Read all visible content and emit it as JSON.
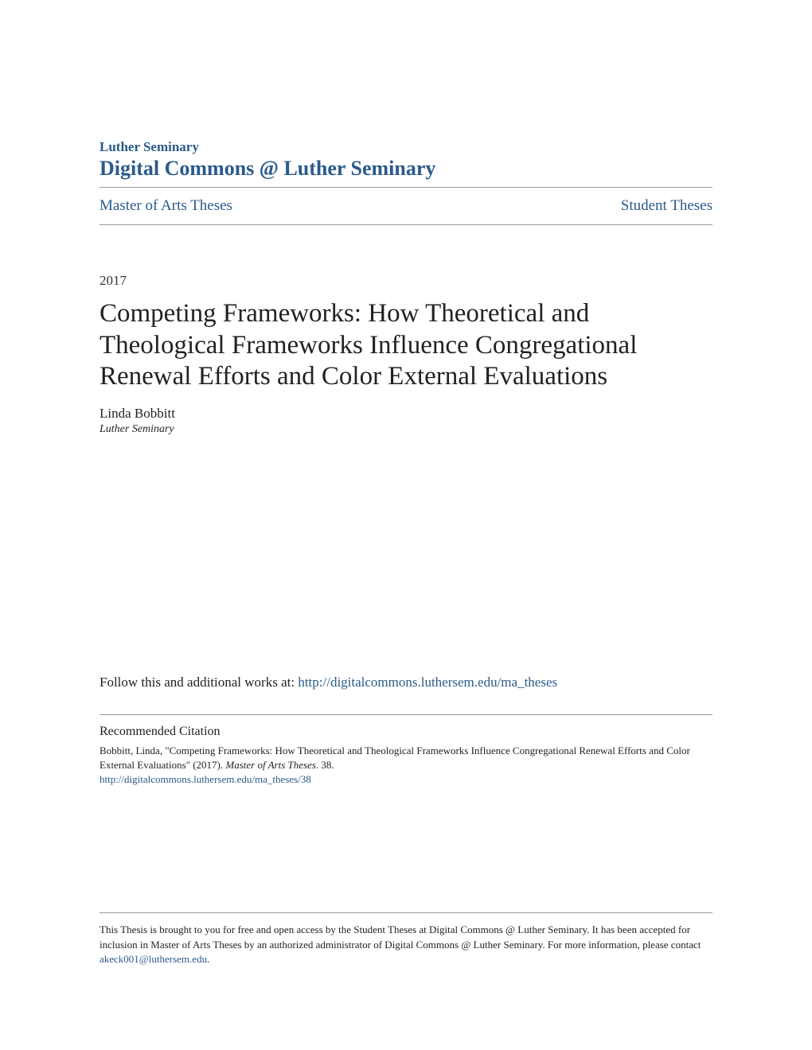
{
  "header": {
    "institution": "Luther Seminary",
    "commons_title": "Digital Commons @ Luther Seminary"
  },
  "breadcrumb": {
    "left": "Master of Arts Theses",
    "right": "Student Theses"
  },
  "year": "2017",
  "title": "Competing Frameworks: How Theoretical and Theological Frameworks Influence Congregational Renewal Efforts and Color External Evaluations",
  "author": "Linda Bobbitt",
  "affiliation": "Luther Seminary",
  "follow": {
    "prefix": "Follow this and additional works at: ",
    "url": "http://digitalcommons.luthersem.edu/ma_theses"
  },
  "citation": {
    "heading": "Recommended Citation",
    "text_part1": "Bobbitt, Linda, \"Competing Frameworks: How Theoretical and Theological Frameworks Influence Congregational Renewal Efforts and Color External Evaluations\" (2017). ",
    "text_italic": "Master of Arts Theses",
    "text_part2": ". 38.",
    "url": "http://digitalcommons.luthersem.edu/ma_theses/38"
  },
  "footer": {
    "text_part1": "This Thesis is brought to you for free and open access by the Student Theses at Digital Commons @ Luther Seminary. It has been accepted for inclusion in Master of Arts Theses by an authorized administrator of Digital Commons @ Luther Seminary. For more information, please contact ",
    "email": "akeck001@luthersem.edu",
    "text_part2": "."
  },
  "colors": {
    "link_color": "#2b5a8b",
    "text_color": "#222222",
    "border_color": "#999999",
    "background": "#ffffff"
  }
}
